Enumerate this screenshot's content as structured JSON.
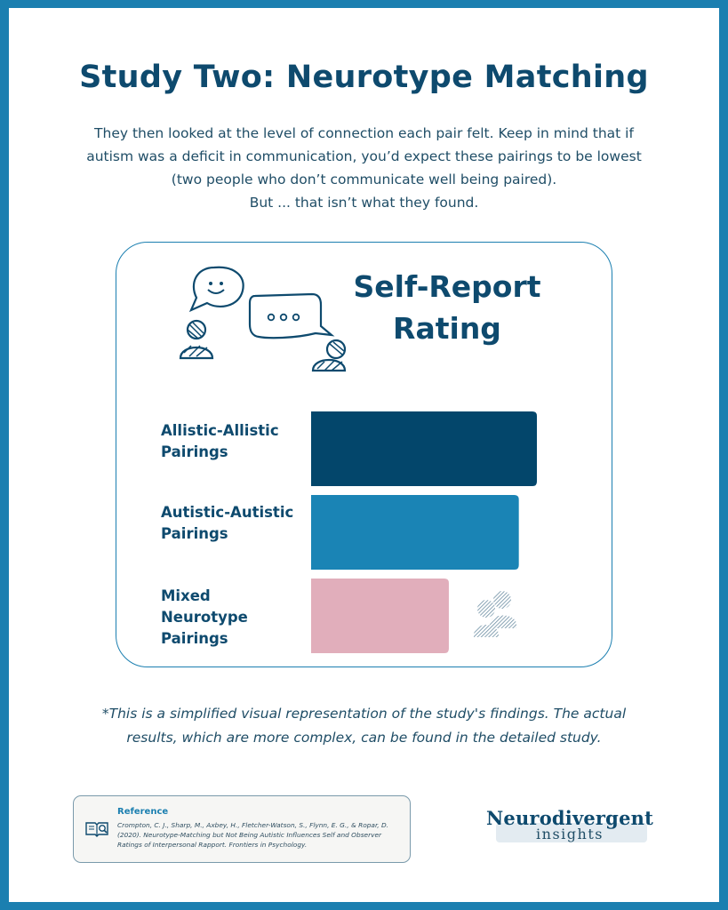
{
  "title": "Study Two: Neurotype Matching",
  "intro": [
    "They then looked at the level of connection each pair felt. Keep in mind that if",
    "autism was a deficit in communication, you’d expect these pairings to be lowest",
    "(two people who don’t communicate well being paired).",
    "But ... that isn’t what they found."
  ],
  "colors": {
    "frame": "#1b7fb0",
    "title": "#0e4a6e",
    "bar_allistic": "#03466b",
    "bar_autistic": "#1a84b5",
    "bar_mixed": "#e1aebb"
  },
  "chart_data": {
    "type": "bar",
    "orientation": "horizontal",
    "title": "Self-Report Rating",
    "categories": [
      "Allistic-Allistic\nPairings",
      "Autistic-Autistic\nPairings",
      "Mixed\nNeurotype\nPairings"
    ],
    "values": [
      100,
      92,
      61
    ],
    "value_unit": "relative rating (no axis printed)",
    "xlim": [
      0,
      100
    ],
    "bar_colors": [
      "#03466b",
      "#1a84b5",
      "#e1aebb"
    ],
    "grid": false,
    "legend": "none"
  },
  "icons": {
    "chat": "speech-bubbles-icon",
    "person": "person-icon",
    "group": "people-group-icon",
    "reference": "book-search-icon"
  },
  "footnote": [
    "*This is a simplified visual representation of the study's findings. The actual",
    "results, which are more complex, can be found in the detailed study."
  ],
  "reference": {
    "title": "Reference",
    "text": "Crompton, C. J., Sharp, M., Axbey, H., Fletcher-Watson, S., Flynn, E. G., & Ropar, D. (2020). Neurotype-Matching but Not Being Autistic Influences Self and Observer Ratings of Interpersonal Rapport. Frontiers in Psychology."
  },
  "brand": {
    "name": "Neurodivergent",
    "sub": "insights"
  }
}
